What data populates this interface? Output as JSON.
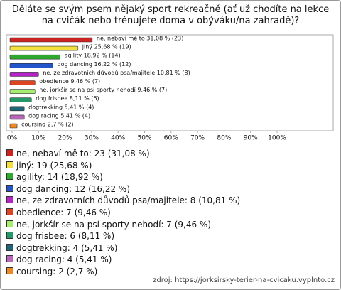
{
  "chart_data": {
    "type": "bar",
    "orientation": "horizontal",
    "title": "Děláte se svým psem nějaký sport rekreačně (ať už chodíte na lekce na cvičák nebo trénujete doma v obýváku/na zahradě)?",
    "categories": [
      "ne, nebaví mě to",
      "jiný",
      "agility",
      "dog dancing",
      "ne, ze zdravotních důvodů psa/majitele",
      "obedience",
      "ne, jorkšír se na psí sporty nehodí",
      "dog frisbee",
      "dogtrekking",
      "dog racing",
      "coursing"
    ],
    "values": [
      31.08,
      25.68,
      18.92,
      16.22,
      10.81,
      9.46,
      9.46,
      8.11,
      5.41,
      5.41,
      2.7
    ],
    "counts": [
      23,
      19,
      14,
      12,
      8,
      7,
      7,
      6,
      4,
      4,
      2
    ],
    "value_labels": [
      "ne, nebaví mě to 31,08 % (23)",
      "jiný 25,68 % (19)",
      "agility 18,92 % (14)",
      "dog dancing 16,22 % (12)",
      "ne, ze zdravotních důvodů psa/majitele 10,81 % (8)",
      "obedience 9,46 % (7)",
      "ne, jorkšír se na psí sporty nehodí 9,46 % (7)",
      "dog frisbee 8,11 % (6)",
      "dogtrekking 5,41 % (4)",
      "dog racing 5,41 % (4)",
      "coursing 2,7 % (2)"
    ],
    "legend_labels": [
      "ne, nebaví mě to: 23 (31,08 %)",
      "jiný: 19 (25,68 %)",
      "agility: 14 (18,92 %)",
      "dog dancing: 12 (16,22 %)",
      "ne, ze zdravotních důvodů psa/majitele: 8 (10,81 %)",
      "obedience: 7 (9,46 %)",
      "ne, jorkšír se na psí sporty nehodí: 7 (9,46 %)",
      "dog frisbee: 6 (8,11 %)",
      "dogtrekking: 4 (5,41 %)",
      "dog racing: 4 (5,41 %)",
      "coursing: 2 (2,7 %)"
    ],
    "colors": [
      "#cc2222",
      "#f2e03c",
      "#2fa82f",
      "#2255cc",
      "#b522c8",
      "#dd4422",
      "#a6ee70",
      "#229966",
      "#1f6677",
      "#b866b8",
      "#ee8822"
    ],
    "xlim": [
      0,
      100
    ],
    "xticks": [
      {
        "value": 0,
        "label": "0%"
      },
      {
        "value": 10,
        "label": "10%"
      },
      {
        "value": 20,
        "label": "20%"
      },
      {
        "value": 30,
        "label": "30%"
      },
      {
        "value": 40,
        "label": "40%"
      },
      {
        "value": 50,
        "label": "50%"
      },
      {
        "value": 60,
        "label": "60%"
      },
      {
        "value": 70,
        "label": "70%"
      },
      {
        "value": 80,
        "label": "80%"
      },
      {
        "value": 90,
        "label": "90%"
      },
      {
        "value": 100,
        "label": "100%"
      }
    ],
    "source": "zdroj: https://jorksirsky-terier-na-cvicaku.vyplnto.cz"
  }
}
